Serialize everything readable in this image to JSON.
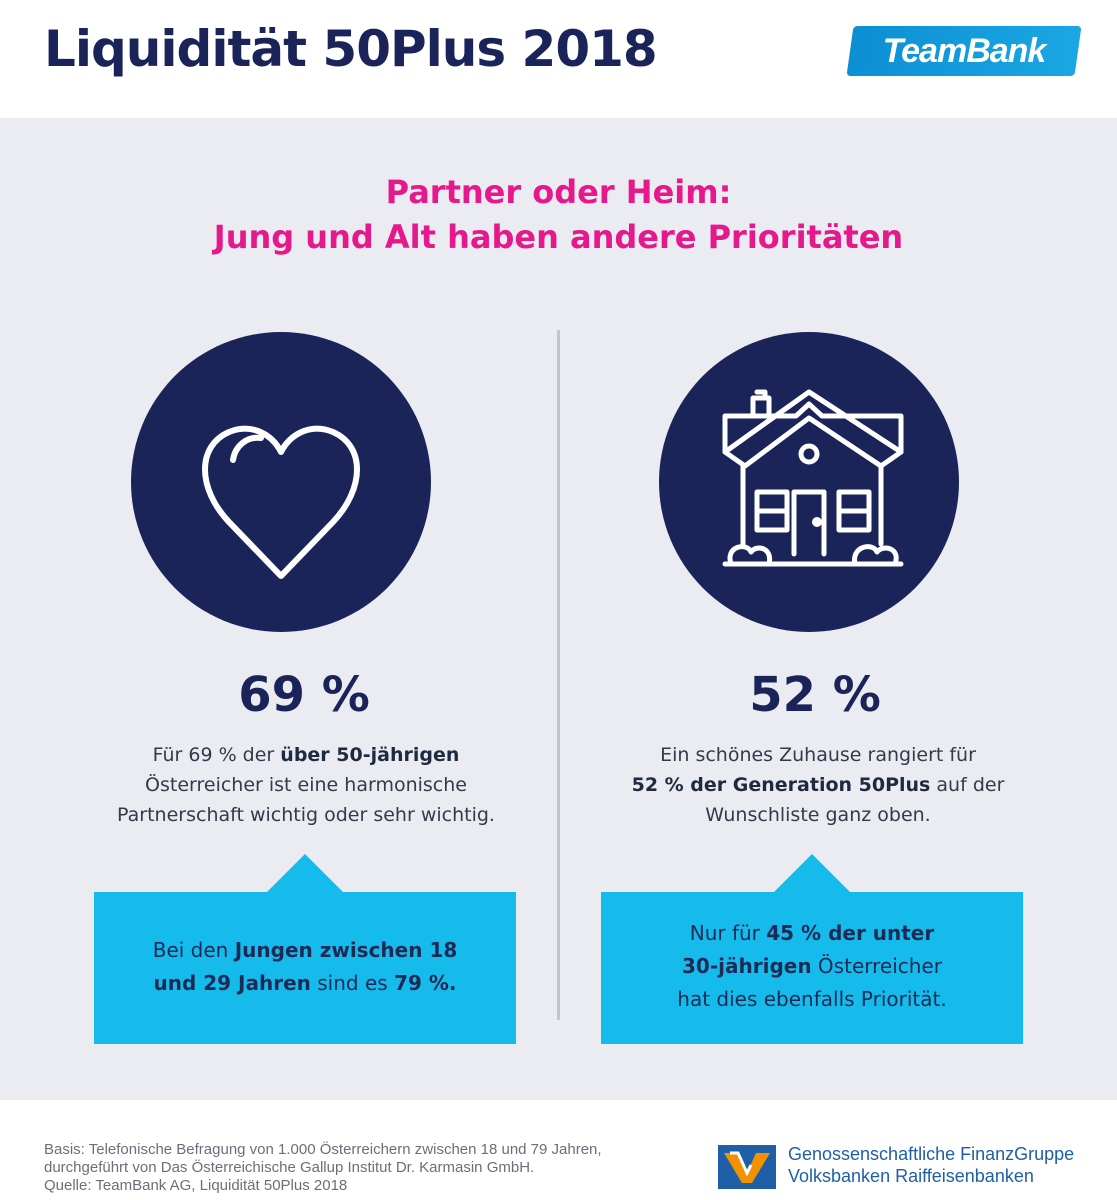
{
  "header": {
    "title": "Liquidität 50Plus 2018",
    "brand_logo": "TeamBank"
  },
  "colors": {
    "navy": "#1b2459",
    "magenta": "#e5198b",
    "cyan": "#14bbeb",
    "panel": "#ebebf2"
  },
  "subtitle": {
    "line1": "Partner oder Heim:",
    "line2": "Jung und Alt haben andere Prioritäten"
  },
  "left": {
    "icon": "heart-icon",
    "percent": "69 %",
    "desc_line1_pre": "Für 69 % der ",
    "desc_line1_bold": "über 50-jährigen",
    "desc_line2": "Österreicher ist eine harmonische",
    "desc_line3": "Partnerschaft wichtig oder sehr wichtig.",
    "box_pre": "Bei den ",
    "box_bold1": "Jungen zwischen 18",
    "box_bold2": "und 29 Jahren",
    "box_mid": " sind es ",
    "box_bold3": "79 %."
  },
  "right": {
    "icon": "house-icon",
    "percent": "52 %",
    "desc_line1": "Ein schönes Zuhause rangiert für",
    "desc_line2_bold": "52 % der Generation 50Plus",
    "desc_line2_post": " auf der",
    "desc_line3": "Wunschliste ganz oben.",
    "box_pre": "Nur für ",
    "box_bold1": "45 % der unter",
    "box_bold2": "30-jährigen",
    "box_post2": " Österreicher",
    "box_line3": "hat dies ebenfalls Priorität."
  },
  "footer": {
    "note_line1": "Basis: Telefonische Befragung von 1.000 Österreichern zwischen 18 und 79 Jahren,",
    "note_line2": "durchgeführt von Das Österreichische Gallup Institut Dr. Karmasin GmbH.",
    "note_line3": "Quelle: TeamBank AG, Liquidität 50Plus 2018",
    "partner_line1": "Genossenschaftliche FinanzGruppe",
    "partner_line2": "Volksbanken Raiffeisenbanken"
  }
}
